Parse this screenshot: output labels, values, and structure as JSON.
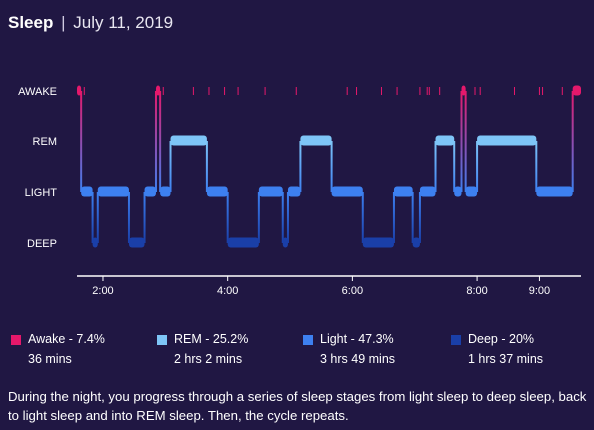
{
  "header": {
    "title": "Sleep",
    "separator": "|",
    "date": "July 11, 2019"
  },
  "colors": {
    "background": "#201743",
    "awake": "#e5186b",
    "rem": "#7ec5f7",
    "light": "#3d80f0",
    "deep": "#1a3fa8",
    "axis": "#ffffff"
  },
  "chart_data": {
    "type": "area",
    "stages": [
      "AWAKE",
      "REM",
      "LIGHT",
      "DEEP"
    ],
    "x_ticks": [
      "2:00",
      "4:00",
      "6:00",
      "8:00",
      "9:00"
    ],
    "x_tick_hours": [
      2,
      4,
      6,
      8,
      9
    ],
    "xlim": [
      "1:35",
      "9:40"
    ],
    "segments": [
      {
        "stage": "AWAKE",
        "start": "1:35",
        "end": "1:39"
      },
      {
        "stage": "LIGHT",
        "start": "1:39",
        "end": "1:50"
      },
      {
        "stage": "DEEP",
        "start": "1:50",
        "end": "1:55"
      },
      {
        "stage": "LIGHT",
        "start": "1:55",
        "end": "2:25"
      },
      {
        "stage": "DEEP",
        "start": "2:25",
        "end": "2:40"
      },
      {
        "stage": "LIGHT",
        "start": "2:40",
        "end": "2:51"
      },
      {
        "stage": "AWAKE",
        "start": "2:51",
        "end": "2:55"
      },
      {
        "stage": "LIGHT",
        "start": "2:55",
        "end": "3:05"
      },
      {
        "stage": "REM",
        "start": "3:05",
        "end": "3:40"
      },
      {
        "stage": "LIGHT",
        "start": "3:40",
        "end": "4:00"
      },
      {
        "stage": "DEEP",
        "start": "4:00",
        "end": "4:30"
      },
      {
        "stage": "LIGHT",
        "start": "4:30",
        "end": "4:53"
      },
      {
        "stage": "DEEP",
        "start": "4:53",
        "end": "4:58"
      },
      {
        "stage": "LIGHT",
        "start": "4:58",
        "end": "5:10"
      },
      {
        "stage": "REM",
        "start": "5:10",
        "end": "5:40"
      },
      {
        "stage": "LIGHT",
        "start": "5:40",
        "end": "6:10"
      },
      {
        "stage": "DEEP",
        "start": "6:10",
        "end": "6:40"
      },
      {
        "stage": "LIGHT",
        "start": "6:40",
        "end": "6:58"
      },
      {
        "stage": "DEEP",
        "start": "6:58",
        "end": "7:05"
      },
      {
        "stage": "LIGHT",
        "start": "7:05",
        "end": "7:20"
      },
      {
        "stage": "REM",
        "start": "7:20",
        "end": "7:38"
      },
      {
        "stage": "LIGHT",
        "start": "7:38",
        "end": "7:45"
      },
      {
        "stage": "AWAKE",
        "start": "7:45",
        "end": "7:49"
      },
      {
        "stage": "LIGHT",
        "start": "7:49",
        "end": "8:00"
      },
      {
        "stage": "REM",
        "start": "8:00",
        "end": "8:57"
      },
      {
        "stage": "LIGHT",
        "start": "8:57",
        "end": "9:32"
      },
      {
        "stage": "AWAKE",
        "start": "9:32",
        "end": "9:40"
      }
    ],
    "awake_ticks": [
      "1:42",
      "2:58",
      "3:27",
      "3:42",
      "3:57",
      "4:10",
      "4:36",
      "5:06",
      "5:55",
      "6:04",
      "6:28",
      "6:43",
      "7:05",
      "7:12",
      "7:14",
      "7:24",
      "7:58",
      "8:03",
      "8:36",
      "9:00",
      "9:03",
      "9:22"
    ],
    "legend": [
      {
        "stage": "awake",
        "label": "Awake - 7.4%",
        "duration": "36 mins"
      },
      {
        "stage": "rem",
        "label": "REM - 25.2%",
        "duration": "2 hrs 2 mins"
      },
      {
        "stage": "light",
        "label": "Light - 47.3%",
        "duration": "3 hrs 49 mins"
      },
      {
        "stage": "deep",
        "label": "Deep - 20%",
        "duration": "1 hrs 37 mins"
      }
    ]
  },
  "description": "During the night, you progress through a series of sleep stages from light sleep to deep sleep, back to light sleep and into REM sleep. Then, the cycle repeats."
}
